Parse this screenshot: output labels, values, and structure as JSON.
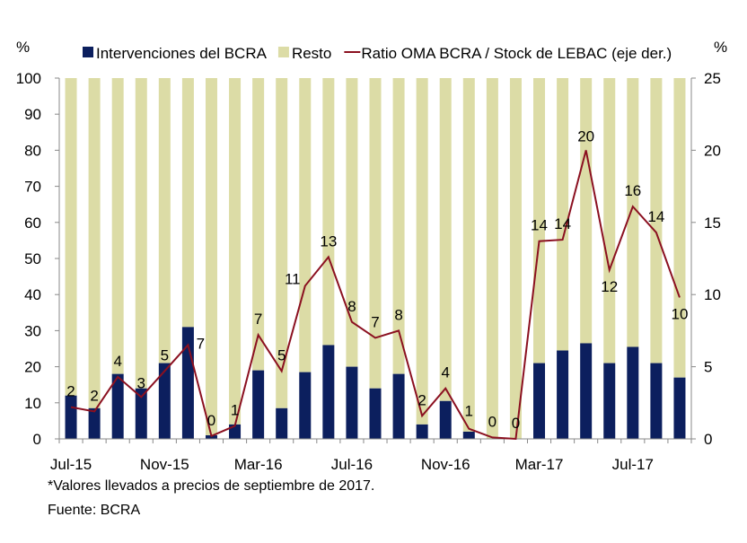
{
  "chart_data": {
    "type": "bar",
    "stacked": true,
    "left_axis_label": "%",
    "right_axis_label": "%",
    "ylim": [
      0,
      100
    ],
    "yticks": [
      0,
      10,
      20,
      30,
      40,
      50,
      60,
      70,
      80,
      90,
      100
    ],
    "y2lim": [
      0,
      25
    ],
    "y2ticks": [
      0,
      5,
      10,
      15,
      20,
      25
    ],
    "grid": false,
    "legend_position": "top",
    "categories": [
      "Jul-15",
      "Aug-15",
      "Sep-15",
      "Oct-15",
      "Nov-15",
      "Dec-15",
      "Jan-16",
      "Feb-16",
      "Mar-16",
      "Apr-16",
      "May-16",
      "Jun-16",
      "Jul-16",
      "Aug-16",
      "Sep-16",
      "Oct-16",
      "Nov-16",
      "Dec-16",
      "Jan-17",
      "Feb-17",
      "Mar-17",
      "Apr-17",
      "May-17",
      "Jun-17",
      "Jul-17",
      "Aug-17",
      "Sep-17"
    ],
    "xtick_labels": [
      "Jul-15",
      "Nov-15",
      "Mar-16",
      "Jul-16",
      "Nov-16",
      "Mar-17",
      "Jul-17"
    ],
    "series": [
      {
        "name": "Intervenciones del BCRA",
        "kind": "bar",
        "axis": "left",
        "color": "#0c1f5e",
        "values": [
          12,
          8.5,
          18,
          14,
          21,
          31,
          1,
          4,
          19,
          8.5,
          18.5,
          26,
          20,
          14,
          18,
          4,
          10.5,
          2,
          0,
          0,
          21,
          24.5,
          26.5,
          21,
          25.5,
          21,
          17
        ]
      },
      {
        "name": "Resto",
        "kind": "bar",
        "axis": "left",
        "color": "#dcdca6",
        "values": [
          88,
          91.5,
          82,
          86,
          79,
          69,
          99,
          96,
          81,
          91.5,
          81.5,
          74,
          80,
          86,
          82,
          96,
          89.5,
          98,
          100,
          100,
          79,
          75.5,
          73.5,
          79,
          74.5,
          79,
          83
        ]
      },
      {
        "name": "Ratio OMA BCRA / Stock de LEBAC (eje der.)",
        "kind": "line",
        "axis": "right",
        "color": "#8b1020",
        "values": [
          2.2,
          1.9,
          4.3,
          2.9,
          4.7,
          6.5,
          0.2,
          0.9,
          7.2,
          4.7,
          10.6,
          12.6,
          8.1,
          7.0,
          7.5,
          1.6,
          3.5,
          0.7,
          0.1,
          0,
          13.7,
          13.8,
          20,
          11.7,
          16.1,
          14.3,
          9.8
        ],
        "data_labels": [
          "2",
          "2",
          "4",
          "3",
          "5",
          "7",
          "0",
          "1",
          "7",
          "5",
          "11",
          "13",
          "8",
          "7",
          "8",
          "2",
          "4",
          "1",
          "0",
          "0",
          "14",
          "14",
          "20",
          "12",
          "16",
          "14",
          "10"
        ]
      }
    ]
  },
  "footnote": "*Valores llevados a precios de septiembre de 2017.",
  "source": "Fuente:  BCRA"
}
